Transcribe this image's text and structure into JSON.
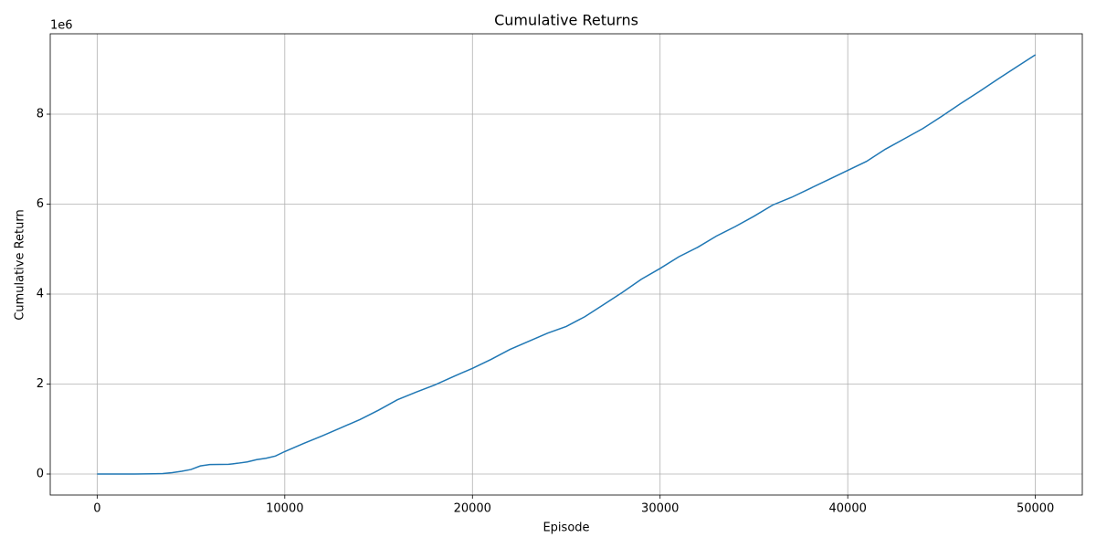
{
  "chart_data": {
    "type": "line",
    "title": "Cumulative Returns",
    "x_label": "Episode",
    "y_label": "Cumulative Return",
    "y_offset_label": "1e6",
    "x": [
      0,
      1000,
      2000,
      3000,
      3500,
      4000,
      4500,
      5000,
      5500,
      6000,
      7000,
      7500,
      8000,
      8500,
      9000,
      9500,
      10000,
      11000,
      12000,
      13000,
      14000,
      15000,
      16000,
      17000,
      18000,
      19000,
      20000,
      21000,
      22000,
      23000,
      24000,
      25000,
      26000,
      27000,
      28000,
      29000,
      30000,
      31000,
      32000,
      33000,
      34000,
      35000,
      36000,
      37000,
      38000,
      39000,
      40000,
      41000,
      42000,
      43000,
      44000,
      45000,
      46000,
      47000,
      48000,
      49000,
      50000
    ],
    "series": [
      {
        "name": "Cumulative Return",
        "color": "#1f77b4",
        "values": [
          0,
          0,
          0,
          0.005,
          0.01,
          0.03,
          0.06,
          0.1,
          0.18,
          0.21,
          0.215,
          0.24,
          0.27,
          0.32,
          0.35,
          0.4,
          0.5,
          0.68,
          0.85,
          1.03,
          1.21,
          1.42,
          1.65,
          1.82,
          1.98,
          2.17,
          2.35,
          2.55,
          2.77,
          2.95,
          3.13,
          3.28,
          3.5,
          3.77,
          4.04,
          4.33,
          4.57,
          4.83,
          5.04,
          5.29,
          5.5,
          5.73,
          5.98,
          6.15,
          6.35,
          6.55,
          6.75,
          6.95,
          7.22,
          7.45,
          7.68,
          7.95,
          8.23,
          8.5,
          8.78,
          9.05,
          9.32
        ]
      }
    ],
    "xlim": [
      -2500,
      52500
    ],
    "xticks": [
      0,
      10000,
      20000,
      30000,
      40000,
      50000
    ],
    "ylim": [
      -0.467,
      9.787
    ],
    "yticks": [
      0,
      2,
      4,
      6,
      8
    ],
    "grid": true
  }
}
